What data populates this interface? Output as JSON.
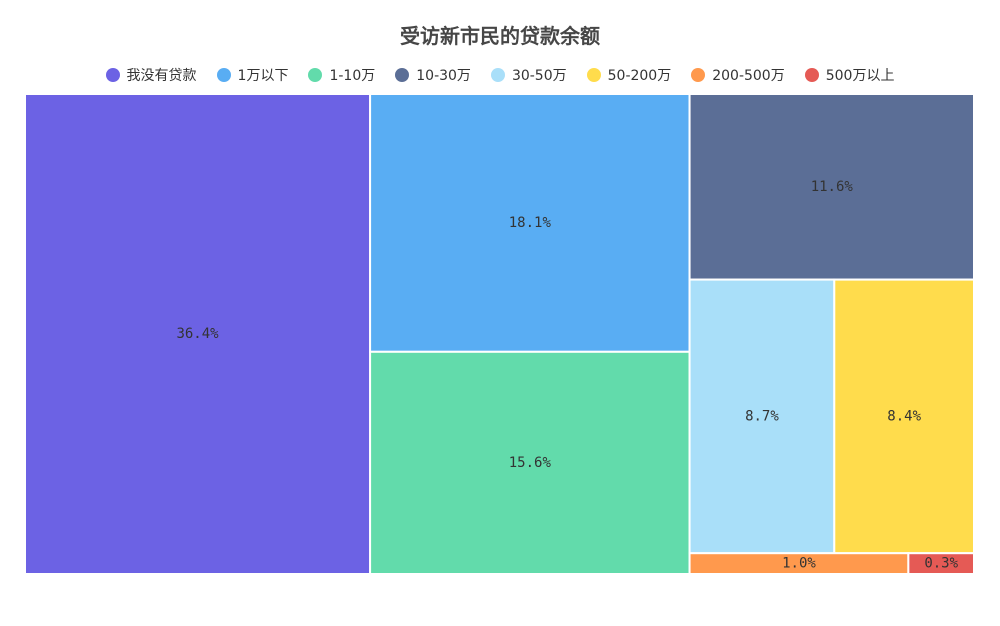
{
  "chart_data": {
    "type": "treemap",
    "title": "受访新市民的贷款余额",
    "legend_position": "top",
    "items": [
      {
        "name": "我没有贷款",
        "value": 36.4,
        "label": "36.4%",
        "color": "#6c62e4"
      },
      {
        "name": "1万以下",
        "value": 18.1,
        "label": "18.1%",
        "color": "#59adf3"
      },
      {
        "name": "1-10万",
        "value": 15.6,
        "label": "15.6%",
        "color": "#62dbab"
      },
      {
        "name": "10-30万",
        "value": 11.6,
        "label": "11.6%",
        "color": "#5b6e96"
      },
      {
        "name": "30-50万",
        "value": 8.7,
        "label": "8.7%",
        "color": "#a9dff9"
      },
      {
        "name": "50-200万",
        "value": 8.4,
        "label": "8.4%",
        "color": "#ffdc4c"
      },
      {
        "name": "200-500万",
        "value": 1.0,
        "label": "1.0%",
        "color": "#ff994d"
      },
      {
        "name": "500万以上",
        "value": 0.3,
        "label": "0.3%",
        "color": "#e55a55"
      }
    ]
  }
}
